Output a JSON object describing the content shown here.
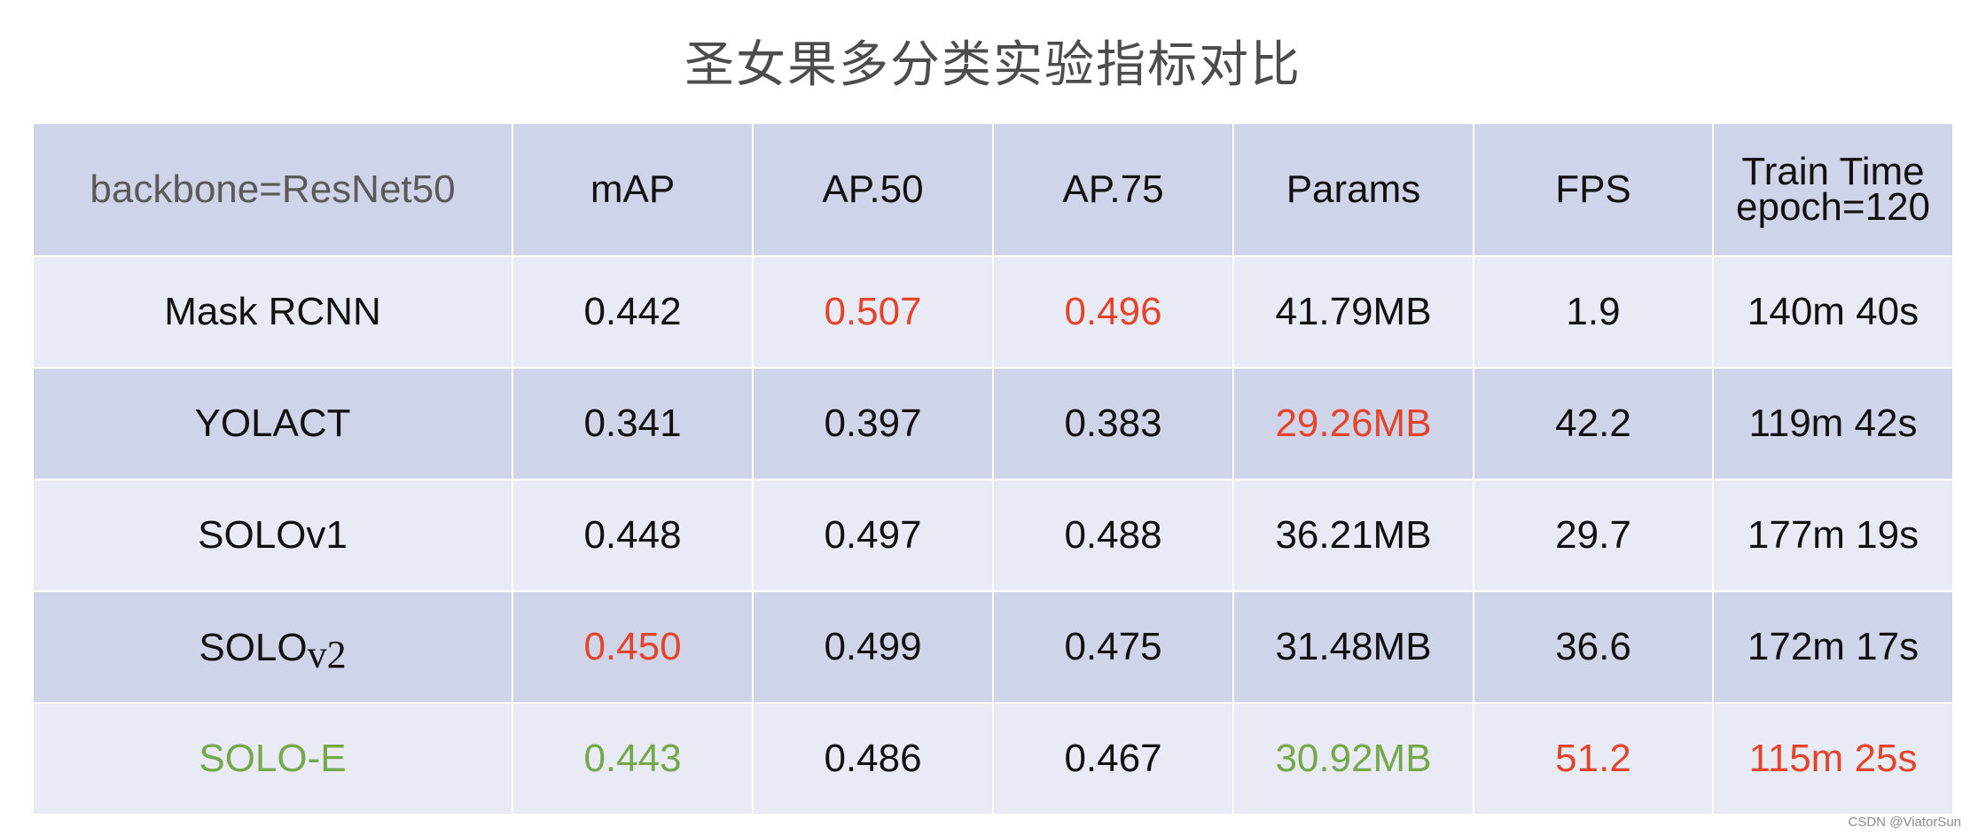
{
  "chart_data": {
    "type": "table",
    "title": "圣女果多分类实验指标对比",
    "columns": [
      "backbone=ResNet50",
      "mAP",
      "AP.50",
      "AP.75",
      "Params",
      "FPS",
      "Train Time|epoch=120"
    ],
    "header": {
      "backbone": "backbone=ResNet50",
      "map": "mAP",
      "ap50": "AP.50",
      "ap75": "AP.75",
      "params": "Params",
      "fps": "FPS",
      "train_time_1": "Train Time",
      "train_time_2": "epoch=120"
    },
    "rows": [
      {
        "model": "Mask RCNN",
        "map": "0.442",
        "ap50": "0.507",
        "ap75": "0.496",
        "params": "41.79MB",
        "fps": "1.9",
        "time": "140m 40s"
      },
      {
        "model": "YOLACT",
        "map": "0.341",
        "ap50": "0.397",
        "ap75": "0.383",
        "params": "29.26MB",
        "fps": "42.2",
        "time": "119m 42s"
      },
      {
        "model": "SOLOv1",
        "map": "0.448",
        "ap50": "0.497",
        "ap75": "0.488",
        "params": "36.21MB",
        "fps": "29.7",
        "time": "177m 19s"
      },
      {
        "model_main": "SOLO",
        "model_sub": "v2",
        "map": "0.450",
        "ap50": "0.499",
        "ap75": "0.475",
        "params": "31.48MB",
        "fps": "36.6",
        "time": "172m 17s"
      },
      {
        "model": "SOLO-E",
        "map": "0.443",
        "ap50": "0.486",
        "ap75": "0.467",
        "params": "30.92MB",
        "fps": "51.2",
        "time": "115m 25s"
      }
    ]
  },
  "colors": {
    "header_bg": "#cfd4e8",
    "row_light": "#e8ebf4",
    "row_dark": "#cfd4e8",
    "highlight_red": "#e4442b",
    "highlight_green": "#74a84a"
  },
  "watermark": "CSDN @ViatorSun"
}
